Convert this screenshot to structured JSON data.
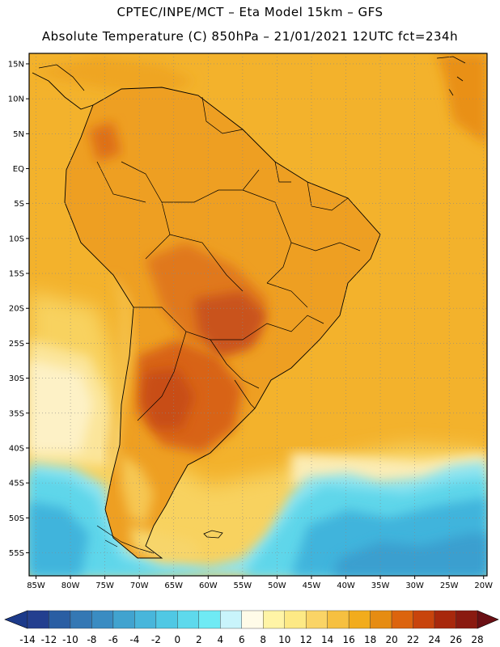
{
  "title_line1": "CPTEC/INPE/MCT –  Eta Model 15km – GFS",
  "title_line2": "Absolute Temperature (C) 850hPa – 21/01/2021 12UTC fct=234h",
  "lat_labels": [
    "15N",
    "10N",
    "5N",
    "EQ",
    "5S",
    "10S",
    "15S",
    "20S",
    "25S",
    "30S",
    "35S",
    "40S",
    "45S",
    "50S",
    "55S"
  ],
  "lon_labels": [
    "85W",
    "80W",
    "75W",
    "70W",
    "65W",
    "60W",
    "55W",
    "50W",
    "45W",
    "40W",
    "35W",
    "30W",
    "25W",
    "20W"
  ],
  "colorbar": {
    "labels": [
      "-14",
      "-12",
      "-10",
      "-8",
      "-6",
      "-4",
      "-2",
      "0",
      "2",
      "4",
      "6",
      "8",
      "10",
      "12",
      "14",
      "16",
      "18",
      "20",
      "22",
      "24",
      "26",
      "28"
    ],
    "low_color": "#1c3a8a",
    "high_color": "#6a0f14",
    "colors": [
      "#233f8f",
      "#2a5ea3",
      "#3478b4",
      "#3a8cc2",
      "#41a3cf",
      "#48b6db",
      "#50c8e4",
      "#5ed9ec",
      "#6feaf4",
      "#c9f4fb",
      "#fffbe8",
      "#fff4a6",
      "#fde985",
      "#fad466",
      "#f6c040",
      "#f2ac1c",
      "#e68c12",
      "#dc640e",
      "#c8440c",
      "#a8280c",
      "#8a1a10"
    ]
  },
  "colors": {
    "ocean_warm": "#f4b52a",
    "ocean_mid": "#f7cf5a",
    "ocean_pale": "#fcebb0",
    "cold_cyan": "#5fd9ea",
    "cold_blue": "#3fb0d8",
    "land_base": "#eea120",
    "land_hot": "#de6e14",
    "land_hotter": "#c94e12"
  }
}
